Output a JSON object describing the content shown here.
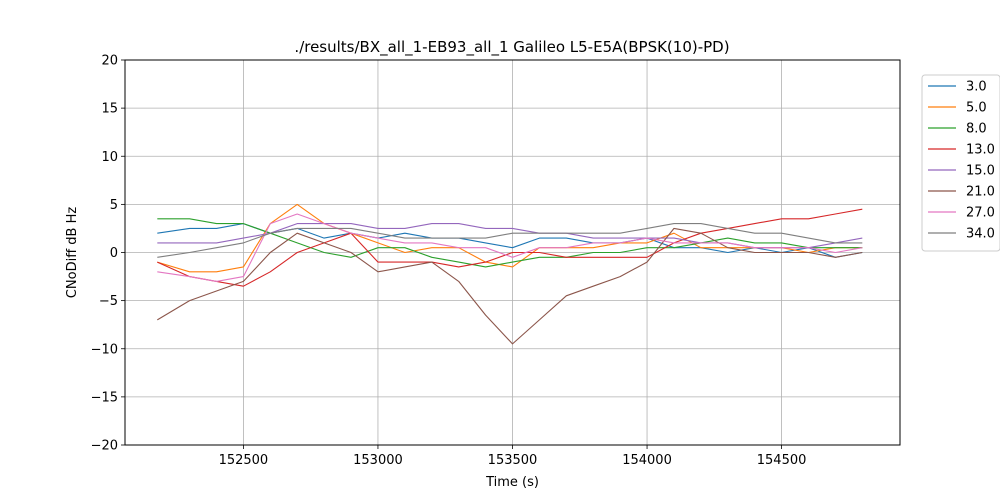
{
  "chart_data": {
    "type": "line",
    "title": "./results/BX_all_1-EB93_all_1 Galileo L5-E5A(BPSK(10)-PD)",
    "xlabel": "Time (s)",
    "ylabel": "CNoDiff dB Hz",
    "xlim": [
      152060,
      154940
    ],
    "ylim": [
      -20,
      20
    ],
    "xticks": [
      152500,
      153000,
      153500,
      154000,
      154500
    ],
    "yticks": [
      -20,
      -15,
      -10,
      -5,
      0,
      5,
      10,
      15,
      20
    ],
    "grid": true,
    "legend_position": "outside-right",
    "x": [
      152180,
      152300,
      152400,
      152500,
      152600,
      152700,
      152800,
      152900,
      153000,
      153100,
      153200,
      153300,
      153400,
      153500,
      153600,
      153700,
      153800,
      153900,
      154000,
      154100,
      154200,
      154300,
      154400,
      154500,
      154600,
      154700,
      154800
    ],
    "series": [
      {
        "name": "3.0",
        "color": "#1f77b4",
        "values": [
          2.0,
          2.5,
          2.5,
          3.0,
          2.0,
          2.5,
          1.5,
          2.0,
          1.5,
          2.0,
          1.5,
          1.5,
          1.0,
          0.5,
          1.5,
          1.5,
          1.0,
          1.0,
          1.5,
          0.5,
          0.5,
          0.0,
          0.5,
          0.0,
          0.5,
          -0.5,
          0.0
        ]
      },
      {
        "name": "5.0",
        "color": "#ff7f0e",
        "values": [
          -1.0,
          -2.0,
          -2.0,
          -1.5,
          3.0,
          5.0,
          3.0,
          2.0,
          1.0,
          0.0,
          0.5,
          0.5,
          -1.0,
          -1.5,
          0.5,
          0.5,
          0.5,
          1.0,
          1.0,
          2.0,
          0.5,
          0.5,
          0.5,
          0.5,
          0.0,
          0.5,
          0.5
        ]
      },
      {
        "name": "8.0",
        "color": "#2ca02c",
        "values": [
          3.5,
          3.5,
          3.0,
          3.0,
          2.0,
          1.0,
          0.0,
          -0.5,
          0.5,
          0.5,
          -0.5,
          -1.0,
          -1.5,
          -1.0,
          -0.5,
          -0.5,
          0.0,
          0.0,
          0.5,
          0.5,
          1.0,
          1.5,
          1.0,
          1.0,
          0.5,
          0.5,
          0.5
        ]
      },
      {
        "name": "13.0",
        "color": "#d62728",
        "values": [
          -1.0,
          -2.5,
          -3.0,
          -3.5,
          -2.0,
          0.0,
          1.0,
          2.0,
          -1.0,
          -1.0,
          -1.0,
          -1.5,
          -1.0,
          0.0,
          0.0,
          -0.5,
          -0.5,
          -0.5,
          -0.5,
          1.0,
          2.0,
          2.5,
          3.0,
          3.5,
          3.5,
          4.0,
          4.5
        ]
      },
      {
        "name": "15.0",
        "color": "#9467bd",
        "values": [
          1.0,
          1.0,
          1.0,
          1.5,
          2.0,
          3.0,
          3.0,
          3.0,
          2.5,
          2.5,
          3.0,
          3.0,
          2.5,
          2.5,
          2.0,
          2.0,
          1.5,
          1.5,
          1.5,
          1.5,
          1.0,
          1.0,
          0.5,
          0.5,
          0.5,
          1.0,
          1.5
        ]
      },
      {
        "name": "21.0",
        "color": "#8c564b",
        "values": [
          -7.0,
          -5.0,
          -4.0,
          -3.0,
          0.0,
          2.0,
          1.0,
          0.0,
          -2.0,
          -1.5,
          -1.0,
          -3.0,
          -6.5,
          -9.5,
          -7.0,
          -4.5,
          -3.5,
          -2.5,
          -1.0,
          2.5,
          2.0,
          0.5,
          0.0,
          0.0,
          0.0,
          -0.5,
          0.0
        ]
      },
      {
        "name": "27.0",
        "color": "#e377c2",
        "values": [
          -2.0,
          -2.5,
          -3.0,
          -2.5,
          3.0,
          4.0,
          3.0,
          2.0,
          1.5,
          1.0,
          1.0,
          0.5,
          0.5,
          -0.5,
          0.5,
          0.5,
          1.0,
          1.0,
          1.5,
          1.0,
          1.0,
          1.0,
          0.5,
          0.5,
          0.5,
          0.0,
          0.5
        ]
      },
      {
        "name": "34.0",
        "color": "#7f7f7f",
        "values": [
          -0.5,
          0.0,
          0.5,
          1.0,
          2.0,
          2.5,
          2.5,
          2.5,
          2.0,
          1.5,
          1.5,
          1.5,
          1.5,
          2.0,
          2.0,
          2.0,
          2.0,
          2.0,
          2.5,
          3.0,
          3.0,
          2.5,
          2.0,
          2.0,
          1.5,
          1.0,
          1.0
        ]
      }
    ]
  }
}
